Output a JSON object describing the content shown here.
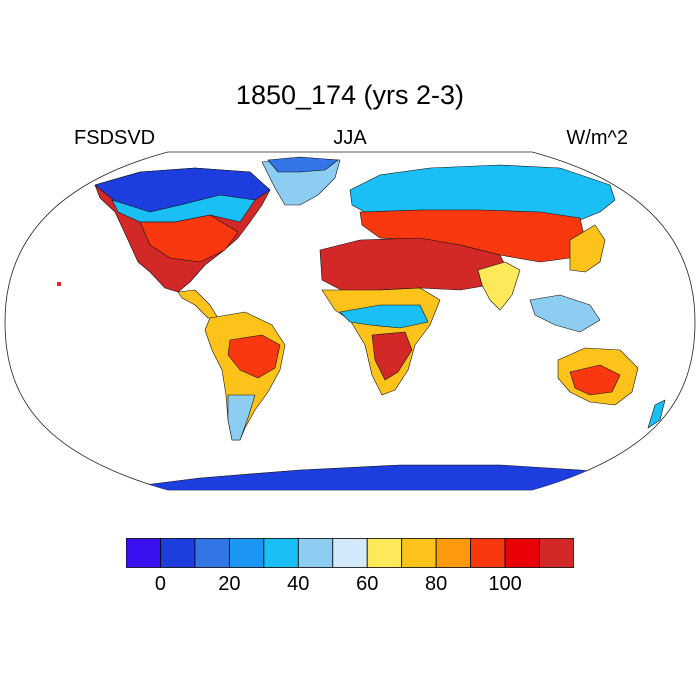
{
  "plot": {
    "title": "1850_174 (yrs 2-3)",
    "variable": "FSDSVD",
    "season": "JJA",
    "units": "W/m^2"
  },
  "colorbar": {
    "colors": [
      "#3a10f0",
      "#1e3ddf",
      "#3374e6",
      "#1b96f2",
      "#19bff5",
      "#8ecdf2",
      "#d3e8f8",
      "#fee95a",
      "#fec31a",
      "#fd9a0c",
      "#f93810",
      "#e80207",
      "#d22828"
    ],
    "ticks": [
      "0",
      "20",
      "40",
      "60",
      "80",
      "100"
    ]
  }
}
